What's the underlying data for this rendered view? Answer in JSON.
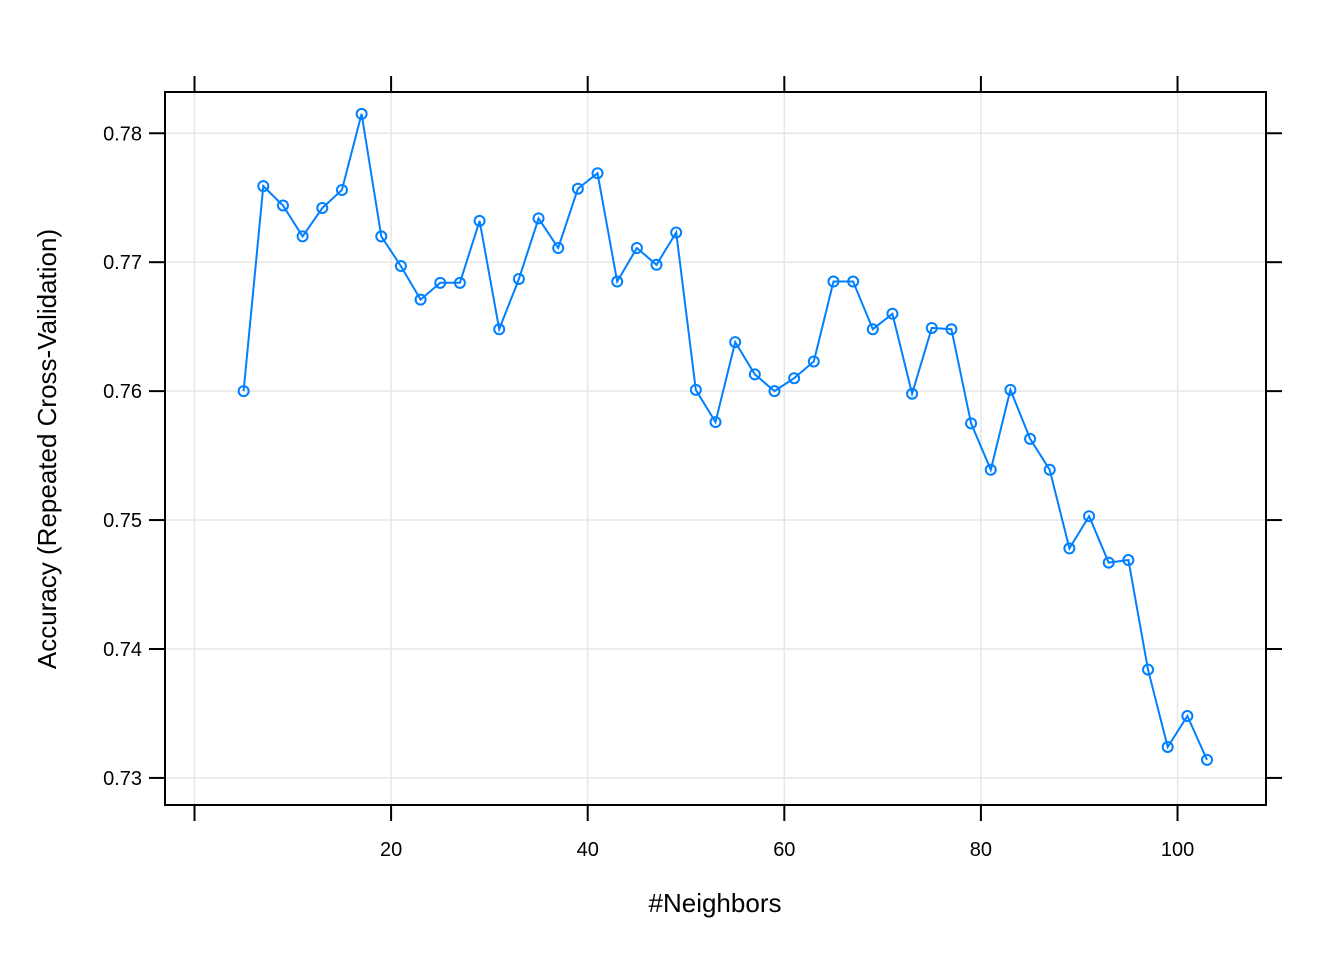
{
  "chart_data": {
    "type": "line",
    "xlabel": "#Neighbors",
    "ylabel": "Accuracy (Repeated Cross-Validation)",
    "xlim": [
      -3,
      109
    ],
    "ylim": [
      0.7279,
      0.7832
    ],
    "x_ticks": [
      0,
      20,
      40,
      60,
      80,
      100
    ],
    "x_tick_labels": [
      "",
      "20",
      "40",
      "60",
      "80",
      "100"
    ],
    "y_ticks": [
      0.73,
      0.74,
      0.75,
      0.76,
      0.77,
      0.78
    ],
    "y_tick_labels": [
      "0.73",
      "0.74",
      "0.75",
      "0.76",
      "0.77",
      "0.78"
    ],
    "grid": true,
    "series": [
      {
        "color": "#0080ff",
        "marker": "open-circle",
        "x": [
          5,
          7,
          9,
          11,
          13,
          15,
          17,
          19,
          21,
          23,
          25,
          27,
          29,
          31,
          33,
          35,
          37,
          39,
          41,
          43,
          45,
          47,
          49,
          51,
          53,
          55,
          57,
          59,
          61,
          63,
          65,
          67,
          69,
          71,
          73,
          75,
          77,
          79,
          81,
          83,
          85,
          87,
          89,
          91,
          93,
          95,
          97,
          99,
          101,
          103
        ],
        "y": [
          0.76,
          0.7759,
          0.7744,
          0.772,
          0.7742,
          0.7756,
          0.7815,
          0.772,
          0.7697,
          0.7671,
          0.7684,
          0.7684,
          0.7732,
          0.7648,
          0.7687,
          0.7734,
          0.7711,
          0.7757,
          0.7769,
          0.7685,
          0.7711,
          0.7698,
          0.7723,
          0.7601,
          0.7576,
          0.7638,
          0.7613,
          0.76,
          0.761,
          0.7623,
          0.7685,
          0.7685,
          0.7648,
          0.766,
          0.7598,
          0.7649,
          0.7648,
          0.7575,
          0.7539,
          0.7601,
          0.7563,
          0.7539,
          0.7478,
          0.7503,
          0.7467,
          0.7469,
          0.7384,
          0.7324,
          0.7348,
          0.7314
        ]
      }
    ]
  }
}
